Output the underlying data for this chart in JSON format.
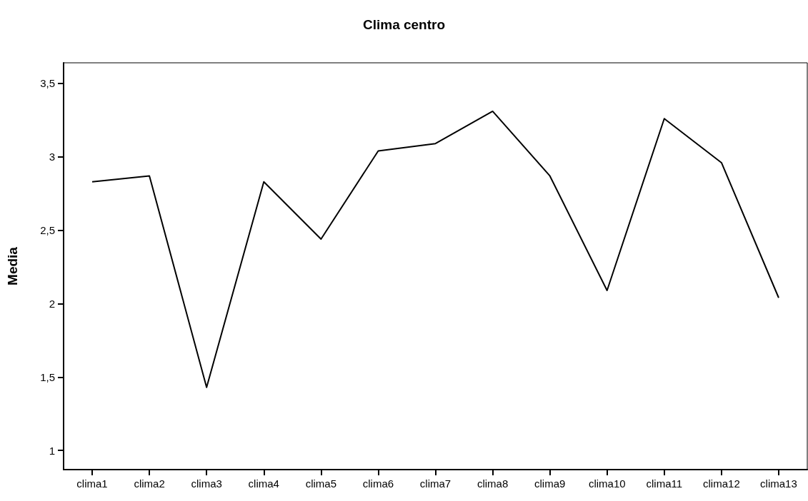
{
  "chart_data": {
    "type": "line",
    "title": "Clima centro",
    "ylabel": "Media",
    "categories": [
      "clima1",
      "clima2",
      "clima3",
      "clima4",
      "clima5",
      "clima6",
      "clima7",
      "clima8",
      "clima9",
      "clima10",
      "clima11",
      "clima12",
      "clima13"
    ],
    "series": [
      {
        "color": "#000000",
        "values": [
          2.83,
          2.87,
          1.43,
          2.83,
          2.44,
          3.04,
          3.09,
          3.31,
          2.87,
          2.09,
          3.26,
          2.96,
          2.04
        ]
      }
    ],
    "ylim": [
      0.87,
      3.64
    ],
    "yticks": [
      1,
      {
        "value": 1.5,
        "label": "1,5"
      },
      2,
      {
        "value": 2.5,
        "label": "2,5"
      },
      3,
      {
        "value": 3.5,
        "label": "3,5"
      }
    ],
    "grid": false,
    "marker": "none",
    "line_style": "solid"
  }
}
